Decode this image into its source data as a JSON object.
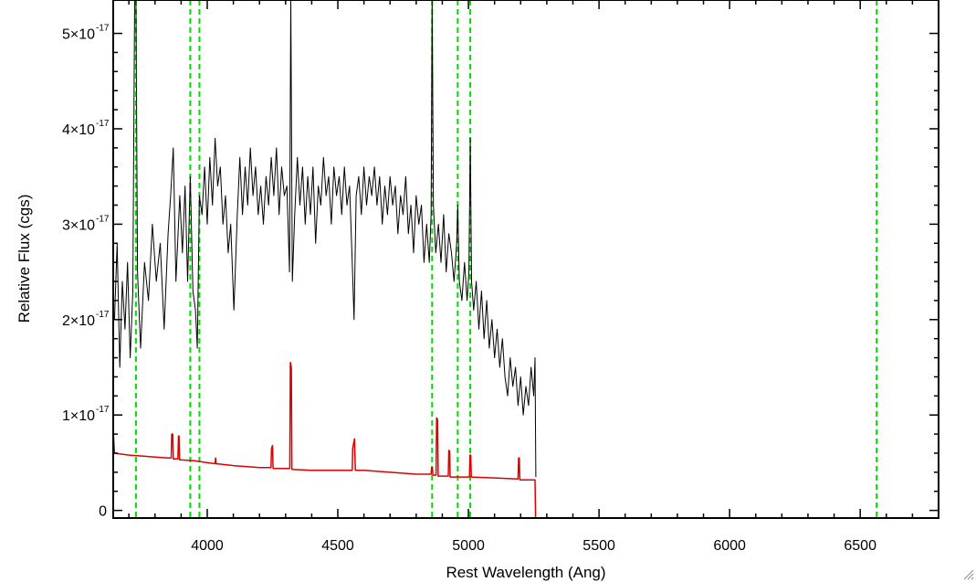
{
  "chart_data": {
    "type": "line",
    "title": "",
    "xlabel": "Rest Wavelength (Ang)",
    "ylabel": "Relative Flux (cgs)",
    "xlim": [
      3640,
      6800
    ],
    "ylim": [
      -0.08,
      5.35
    ],
    "y_unit_multiplier": "1e-17",
    "x_ticks": [
      {
        "value": 4000,
        "label": "4000"
      },
      {
        "value": 4500,
        "label": "4500"
      },
      {
        "value": 5000,
        "label": "5000"
      },
      {
        "value": 5500,
        "label": "5500"
      },
      {
        "value": 6000,
        "label": "6000"
      },
      {
        "value": 6500,
        "label": "6500"
      }
    ],
    "y_ticks": [
      {
        "value": 0,
        "mantissa": "0",
        "exponent": ""
      },
      {
        "value": 1,
        "mantissa": "1×10",
        "exponent": "-17"
      },
      {
        "value": 2,
        "mantissa": "2×10",
        "exponent": "-17"
      },
      {
        "value": 3,
        "mantissa": "3×10",
        "exponent": "-17"
      },
      {
        "value": 4,
        "mantissa": "4×10",
        "exponent": "-17"
      },
      {
        "value": 5,
        "mantissa": "5×10",
        "exponent": "-17"
      }
    ],
    "vlines": {
      "color": "#00dd00",
      "style": "dashed",
      "x": [
        3727,
        3935,
        3970,
        4861,
        4959,
        5007,
        6563
      ]
    },
    "series": [
      {
        "color": "#000000",
        "points": [
          [
            3645,
            2.0
          ],
          [
            3655,
            2.8
          ],
          [
            3665,
            1.5
          ],
          [
            3675,
            2.4
          ],
          [
            3685,
            1.9
          ],
          [
            3695,
            2.6
          ],
          [
            3705,
            1.6
          ],
          [
            3715,
            2.3
          ],
          [
            3722,
            5.4
          ],
          [
            3727,
            5.4
          ],
          [
            3733,
            2.5
          ],
          [
            3745,
            1.7
          ],
          [
            3760,
            2.6
          ],
          [
            3775,
            2.2
          ],
          [
            3790,
            3.0
          ],
          [
            3805,
            2.4
          ],
          [
            3820,
            2.8
          ],
          [
            3835,
            1.9
          ],
          [
            3850,
            2.9
          ],
          [
            3860,
            3.3
          ],
          [
            3870,
            3.8
          ],
          [
            3880,
            2.4
          ],
          [
            3895,
            3.3
          ],
          [
            3905,
            2.7
          ],
          [
            3915,
            3.4
          ],
          [
            3925,
            2.4
          ],
          [
            3935,
            3.5
          ],
          [
            3945,
            2.3
          ],
          [
            3955,
            2.1
          ],
          [
            3962,
            1.7
          ],
          [
            3970,
            3.3
          ],
          [
            3980,
            3.1
          ],
          [
            3990,
            3.6
          ],
          [
            4000,
            3.0
          ],
          [
            4010,
            3.7
          ],
          [
            4020,
            3.2
          ],
          [
            4030,
            3.9
          ],
          [
            4040,
            3.4
          ],
          [
            4050,
            3.6
          ],
          [
            4060,
            3.0
          ],
          [
            4070,
            3.3
          ],
          [
            4080,
            2.7
          ],
          [
            4090,
            3.0
          ],
          [
            4102,
            2.1
          ],
          [
            4115,
            3.1
          ],
          [
            4125,
            3.7
          ],
          [
            4135,
            3.1
          ],
          [
            4145,
            3.6
          ],
          [
            4155,
            3.2
          ],
          [
            4165,
            3.8
          ],
          [
            4175,
            3.3
          ],
          [
            4185,
            3.6
          ],
          [
            4195,
            3.1
          ],
          [
            4205,
            3.4
          ],
          [
            4215,
            3.0
          ],
          [
            4225,
            3.5
          ],
          [
            4235,
            3.2
          ],
          [
            4245,
            3.7
          ],
          [
            4255,
            3.3
          ],
          [
            4265,
            3.8
          ],
          [
            4275,
            3.1
          ],
          [
            4285,
            3.6
          ],
          [
            4295,
            3.3
          ],
          [
            4305,
            3.4
          ],
          [
            4315,
            2.5
          ],
          [
            4320,
            5.4
          ],
          [
            4326,
            2.4
          ],
          [
            4335,
            3.1
          ],
          [
            4345,
            3.7
          ],
          [
            4355,
            3.2
          ],
          [
            4365,
            3.6
          ],
          [
            4375,
            3.0
          ],
          [
            4385,
            3.5
          ],
          [
            4395,
            3.1
          ],
          [
            4405,
            3.6
          ],
          [
            4415,
            2.8
          ],
          [
            4425,
            3.4
          ],
          [
            4435,
            3.2
          ],
          [
            4445,
            3.7
          ],
          [
            4455,
            3.3
          ],
          [
            4465,
            3.5
          ],
          [
            4475,
            3.0
          ],
          [
            4485,
            3.6
          ],
          [
            4495,
            3.3
          ],
          [
            4505,
            3.5
          ],
          [
            4515,
            3.1
          ],
          [
            4525,
            3.6
          ],
          [
            4535,
            3.2
          ],
          [
            4545,
            3.4
          ],
          [
            4555,
            2.6
          ],
          [
            4562,
            2.0
          ],
          [
            4570,
            3.3
          ],
          [
            4580,
            3.5
          ],
          [
            4590,
            3.1
          ],
          [
            4600,
            3.6
          ],
          [
            4610,
            3.2
          ],
          [
            4620,
            3.5
          ],
          [
            4630,
            3.3
          ],
          [
            4640,
            3.6
          ],
          [
            4650,
            3.2
          ],
          [
            4660,
            3.5
          ],
          [
            4670,
            3.0
          ],
          [
            4680,
            3.4
          ],
          [
            4690,
            3.1
          ],
          [
            4700,
            3.5
          ],
          [
            4710,
            3.2
          ],
          [
            4720,
            3.4
          ],
          [
            4730,
            2.9
          ],
          [
            4740,
            3.3
          ],
          [
            4750,
            3.1
          ],
          [
            4760,
            3.5
          ],
          [
            4770,
            2.9
          ],
          [
            4780,
            3.2
          ],
          [
            4790,
            2.7
          ],
          [
            4800,
            3.3
          ],
          [
            4810,
            3.0
          ],
          [
            4820,
            3.2
          ],
          [
            4830,
            2.6
          ],
          [
            4840,
            3.0
          ],
          [
            4850,
            2.6
          ],
          [
            4857,
            3.1
          ],
          [
            4861,
            5.4
          ],
          [
            4866,
            3.2
          ],
          [
            4875,
            2.7
          ],
          [
            4885,
            3.0
          ],
          [
            4895,
            2.6
          ],
          [
            4905,
            3.1
          ],
          [
            4915,
            2.5
          ],
          [
            4925,
            2.9
          ],
          [
            4935,
            2.7
          ],
          [
            4945,
            2.4
          ],
          [
            4955,
            2.8
          ],
          [
            4959,
            3.2
          ],
          [
            4965,
            2.4
          ],
          [
            4975,
            2.2
          ],
          [
            4985,
            2.6
          ],
          [
            4995,
            2.2
          ],
          [
            5002,
            2.5
          ],
          [
            5007,
            3.9
          ],
          [
            5012,
            2.4
          ],
          [
            5020,
            2.1
          ],
          [
            5030,
            2.4
          ],
          [
            5040,
            1.9
          ],
          [
            5050,
            2.3
          ],
          [
            5060,
            1.8
          ],
          [
            5070,
            2.2
          ],
          [
            5080,
            1.7
          ],
          [
            5090,
            2.0
          ],
          [
            5100,
            1.6
          ],
          [
            5110,
            1.9
          ],
          [
            5120,
            1.5
          ],
          [
            5130,
            1.8
          ],
          [
            5140,
            1.4
          ],
          [
            5150,
            1.2
          ],
          [
            5160,
            1.6
          ],
          [
            5170,
            1.3
          ],
          [
            5180,
            1.5
          ],
          [
            5190,
            1.1
          ],
          [
            5200,
            1.4
          ],
          [
            5210,
            1.0
          ],
          [
            5220,
            1.3
          ],
          [
            5230,
            1.1
          ],
          [
            5240,
            1.5
          ],
          [
            5250,
            1.2
          ],
          [
            5255,
            1.6
          ],
          [
            5258,
            0.35
          ]
        ]
      },
      {
        "color": "#dd0000",
        "points": [
          [
            3640,
            0.85
          ],
          [
            3645,
            0.6
          ],
          [
            3700,
            0.58
          ],
          [
            3750,
            0.57
          ],
          [
            3800,
            0.56
          ],
          [
            3850,
            0.55
          ],
          [
            3862,
            0.55
          ],
          [
            3864,
            0.8
          ],
          [
            3868,
            0.8
          ],
          [
            3870,
            0.54
          ],
          [
            3888,
            0.54
          ],
          [
            3890,
            0.78
          ],
          [
            3892,
            0.78
          ],
          [
            3894,
            0.53
          ],
          [
            3950,
            0.52
          ],
          [
            4000,
            0.5
          ],
          [
            4030,
            0.49
          ],
          [
            4032,
            0.55
          ],
          [
            4034,
            0.49
          ],
          [
            4100,
            0.47
          ],
          [
            4200,
            0.45
          ],
          [
            4244,
            0.45
          ],
          [
            4246,
            0.65
          ],
          [
            4250,
            0.68
          ],
          [
            4252,
            0.44
          ],
          [
            4316,
            0.44
          ],
          [
            4318,
            1.55
          ],
          [
            4322,
            1.5
          ],
          [
            4324,
            0.43
          ],
          [
            4400,
            0.42
          ],
          [
            4500,
            0.42
          ],
          [
            4555,
            0.42
          ],
          [
            4557,
            0.65
          ],
          [
            4564,
            0.75
          ],
          [
            4567,
            0.42
          ],
          [
            4600,
            0.42
          ],
          [
            4700,
            0.4
          ],
          [
            4800,
            0.38
          ],
          [
            4857,
            0.38
          ],
          [
            4859,
            0.45
          ],
          [
            4862,
            0.45
          ],
          [
            4864,
            0.37
          ],
          [
            4876,
            0.37
          ],
          [
            4878,
            0.97
          ],
          [
            4882,
            0.95
          ],
          [
            4884,
            0.36
          ],
          [
            4923,
            0.36
          ],
          [
            4925,
            0.63
          ],
          [
            4928,
            0.62
          ],
          [
            4930,
            0.35
          ],
          [
            5004,
            0.35
          ],
          [
            5006,
            0.58
          ],
          [
            5009,
            0.58
          ],
          [
            5011,
            0.35
          ],
          [
            5100,
            0.34
          ],
          [
            5190,
            0.33
          ],
          [
            5192,
            0.55
          ],
          [
            5195,
            0.55
          ],
          [
            5197,
            0.32
          ],
          [
            5255,
            0.32
          ],
          [
            5257,
            -0.08
          ],
          [
            6800,
            -0.08
          ]
        ]
      }
    ]
  }
}
